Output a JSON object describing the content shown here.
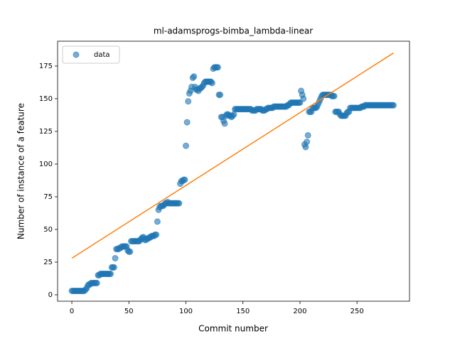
{
  "chart_data": {
    "type": "scatter",
    "title": "ml-adamsprogs-bimba_lambda-linear",
    "x_label": "Commit number",
    "y_label": "Number of instance of a feature",
    "xlim": [
      -12.5,
      296
    ],
    "ylim": [
      -4.9,
      194
    ],
    "xticks": [
      0,
      50,
      100,
      150,
      200,
      250
    ],
    "yticks": [
      0,
      25,
      50,
      75,
      100,
      125,
      150,
      175
    ],
    "legend": "upper left",
    "series": [
      {
        "name": "data",
        "color": "#1f77b4",
        "type": "scatter",
        "x": [
          0,
          1,
          2,
          3,
          4,
          5,
          6,
          7,
          8,
          9,
          10,
          11,
          12,
          13,
          14,
          15,
          16,
          17,
          18,
          19,
          20,
          21,
          22,
          23,
          24,
          25,
          26,
          27,
          28,
          29,
          30,
          31,
          32,
          33,
          34,
          35,
          36,
          37,
          38,
          39,
          40,
          41,
          42,
          43,
          44,
          45,
          46,
          47,
          48,
          49,
          50,
          51,
          52,
          53,
          54,
          55,
          56,
          57,
          58,
          59,
          60,
          61,
          62,
          63,
          64,
          65,
          66,
          67,
          68,
          69,
          70,
          71,
          72,
          73,
          74,
          75,
          76,
          77,
          78,
          79,
          80,
          81,
          82,
          83,
          84,
          85,
          86,
          87,
          88,
          89,
          90,
          91,
          92,
          93,
          94,
          95,
          96,
          97,
          98,
          99,
          100,
          101,
          102,
          103,
          104,
          105,
          106,
          107,
          108,
          109,
          110,
          111,
          112,
          113,
          114,
          115,
          116,
          117,
          118,
          119,
          120,
          121,
          122,
          123,
          124,
          125,
          126,
          127,
          128,
          129,
          130,
          131,
          132,
          133,
          134,
          135,
          136,
          137,
          138,
          139,
          140,
          141,
          142,
          143,
          144,
          145,
          146,
          147,
          148,
          149,
          150,
          151,
          152,
          153,
          154,
          155,
          156,
          157,
          158,
          159,
          160,
          161,
          162,
          163,
          164,
          165,
          166,
          167,
          168,
          169,
          170,
          171,
          172,
          173,
          174,
          175,
          176,
          177,
          178,
          179,
          180,
          181,
          182,
          183,
          184,
          185,
          186,
          187,
          188,
          189,
          190,
          191,
          192,
          193,
          194,
          195,
          196,
          197,
          198,
          199,
          200,
          201,
          202,
          203,
          204,
          205,
          206,
          207,
          208,
          209,
          210,
          211,
          212,
          213,
          214,
          215,
          216,
          217,
          218,
          219,
          220,
          221,
          222,
          223,
          224,
          225,
          226,
          227,
          228,
          229,
          230,
          231,
          232,
          233,
          234,
          235,
          236,
          237,
          238,
          239,
          240,
          241,
          242,
          243,
          244,
          245,
          246,
          247,
          248,
          249,
          250,
          251,
          252,
          253,
          254,
          255,
          256,
          257,
          258,
          259,
          260,
          261,
          262,
          263,
          264,
          265,
          266,
          267,
          268,
          269,
          270,
          271,
          272,
          273,
          274,
          275,
          276,
          277,
          278,
          279,
          280,
          281,
          282
        ],
        "values": [
          3,
          3,
          3,
          3,
          3,
          3,
          3,
          3,
          3,
          3,
          3,
          3,
          4,
          5,
          7,
          8,
          8,
          9,
          9,
          9,
          9,
          9,
          9,
          15,
          15,
          16,
          16,
          16,
          16,
          16,
          16,
          16,
          16,
          16,
          16,
          21,
          21,
          21,
          28,
          35,
          35,
          35,
          36,
          36,
          37,
          37,
          37,
          37,
          37,
          34,
          33,
          33,
          41,
          41,
          41,
          41,
          41,
          41,
          41,
          41,
          42,
          43,
          44,
          44,
          42,
          42,
          43,
          43,
          44,
          44,
          45,
          45,
          45,
          46,
          46,
          56,
          65,
          67,
          68,
          68,
          68,
          69,
          70,
          70,
          71,
          70,
          70,
          70,
          70,
          70,
          70,
          70,
          70,
          70,
          70,
          85,
          87,
          87,
          88,
          88,
          114,
          132,
          148,
          154,
          156,
          159,
          166,
          167,
          159,
          157,
          157,
          156,
          158,
          158,
          159,
          160,
          162,
          163,
          163,
          163,
          163,
          163,
          163,
          162,
          173,
          174,
          174,
          174,
          174,
          153,
          153,
          136,
          136,
          133,
          131,
          137,
          138,
          138,
          137,
          137,
          136,
          137,
          138,
          142,
          142,
          142,
          142,
          142,
          142,
          142,
          142,
          142,
          142,
          142,
          142,
          142,
          142,
          142,
          141,
          141,
          141,
          141,
          142,
          142,
          142,
          142,
          142,
          141,
          141,
          141,
          142,
          142,
          143,
          143,
          143,
          143,
          143,
          144,
          144,
          144,
          144,
          144,
          144,
          144,
          144,
          144,
          144,
          144,
          144,
          145,
          145,
          146,
          147,
          147,
          147,
          147,
          147,
          147,
          147,
          147,
          147,
          156,
          153,
          150,
          115,
          113,
          117,
          122,
          140,
          140,
          140,
          143,
          143,
          143,
          143,
          144,
          146,
          148,
          150,
          152,
          153,
          153,
          153,
          153,
          153,
          153,
          153,
          153,
          152,
          152,
          152,
          140,
          140,
          140,
          140,
          138,
          137,
          137,
          137,
          137,
          137,
          139,
          140,
          140,
          143,
          143,
          143,
          143,
          143,
          143,
          143,
          143,
          143,
          143,
          144,
          144,
          144,
          145,
          145,
          145,
          145,
          145,
          145,
          145,
          145,
          145,
          145,
          145,
          145,
          145,
          145,
          145,
          145,
          145,
          145,
          145,
          145,
          145,
          145,
          145,
          145,
          145,
          145
        ]
      },
      {
        "color": "#ff7f0e",
        "type": "line",
        "x": [
          0,
          282
        ],
        "values": [
          28,
          185
        ]
      }
    ]
  }
}
